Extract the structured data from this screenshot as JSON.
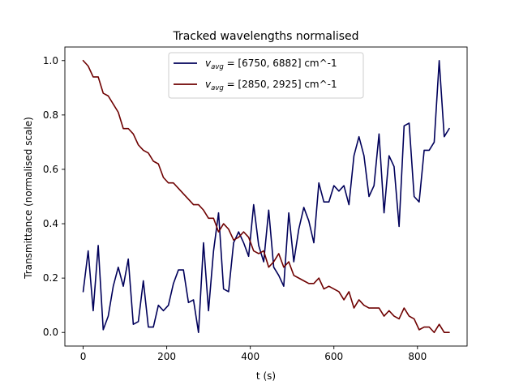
{
  "chart_data": {
    "type": "line",
    "title": "Tracked wavelengths normalised",
    "xlabel": "t (s)",
    "ylabel": "Transmittance (normalised scale)",
    "xlim": [
      -43.75,
      918.75
    ],
    "ylim": [
      -0.05,
      1.05
    ],
    "xticks": [
      0,
      200,
      400,
      600,
      800
    ],
    "yticks": [
      0.0,
      0.2,
      0.4,
      0.6,
      0.8,
      1.0
    ],
    "xtick_labels": [
      "0",
      "200",
      "400",
      "600",
      "800"
    ],
    "ytick_labels": [
      "0.0",
      "0.2",
      "0.4",
      "0.6",
      "0.8",
      "1.0"
    ],
    "grid": false,
    "legend_position": "top-center",
    "series": [
      {
        "name": "v_avg = [6750, 6882] cm^-1",
        "legend_main": "v",
        "legend_sub": "avg",
        "legend_rest": " = [6750, 6882] cm^-1",
        "color": "#00005a",
        "x": [
          0,
          12,
          24,
          36,
          48,
          60,
          72,
          84,
          96,
          108,
          120,
          132,
          144,
          156,
          168,
          180,
          192,
          204,
          216,
          228,
          240,
          252,
          264,
          276,
          288,
          300,
          312,
          324,
          336,
          348,
          360,
          372,
          384,
          396,
          408,
          420,
          432,
          444,
          456,
          468,
          480,
          492,
          504,
          516,
          528,
          540,
          552,
          564,
          576,
          588,
          600,
          612,
          624,
          636,
          648,
          660,
          672,
          684,
          696,
          708,
          720,
          732,
          744,
          756,
          768,
          780,
          792,
          804,
          816,
          828,
          840,
          852,
          864,
          876
        ],
        "y": [
          0.15,
          0.3,
          0.08,
          0.32,
          0.01,
          0.06,
          0.17,
          0.24,
          0.17,
          0.27,
          0.03,
          0.04,
          0.19,
          0.02,
          0.02,
          0.1,
          0.08,
          0.1,
          0.18,
          0.23,
          0.23,
          0.11,
          0.12,
          0.0,
          0.33,
          0.08,
          0.3,
          0.44,
          0.16,
          0.15,
          0.33,
          0.37,
          0.33,
          0.28,
          0.47,
          0.32,
          0.26,
          0.45,
          0.24,
          0.21,
          0.17,
          0.44,
          0.26,
          0.38,
          0.46,
          0.41,
          0.33,
          0.55,
          0.48,
          0.48,
          0.54,
          0.52,
          0.54,
          0.47,
          0.65,
          0.72,
          0.65,
          0.5,
          0.54,
          0.73,
          0.44,
          0.65,
          0.61,
          0.39,
          0.76,
          0.77,
          0.5,
          0.48,
          0.67,
          0.67,
          0.7,
          1.0,
          0.72,
          0.75
        ]
      },
      {
        "name": "v_avg = [2850, 2925] cm^-1",
        "legend_main": "v",
        "legend_sub": "avg",
        "legend_rest": " = [2850, 2925] cm^-1",
        "color": "#6e0000",
        "x": [
          0,
          12,
          24,
          36,
          48,
          60,
          72,
          84,
          96,
          108,
          120,
          132,
          144,
          156,
          168,
          180,
          192,
          204,
          216,
          228,
          240,
          252,
          264,
          276,
          288,
          300,
          312,
          324,
          336,
          348,
          360,
          372,
          384,
          396,
          408,
          420,
          432,
          444,
          456,
          468,
          480,
          492,
          504,
          516,
          528,
          540,
          552,
          564,
          576,
          588,
          600,
          612,
          624,
          636,
          648,
          660,
          672,
          684,
          696,
          708,
          720,
          732,
          744,
          756,
          768,
          780,
          792,
          804,
          816,
          828,
          840,
          852,
          864,
          876
        ],
        "y": [
          1.0,
          0.98,
          0.94,
          0.94,
          0.88,
          0.87,
          0.84,
          0.81,
          0.75,
          0.75,
          0.73,
          0.69,
          0.67,
          0.66,
          0.63,
          0.62,
          0.57,
          0.55,
          0.55,
          0.53,
          0.51,
          0.49,
          0.47,
          0.47,
          0.45,
          0.42,
          0.42,
          0.37,
          0.4,
          0.38,
          0.34,
          0.35,
          0.37,
          0.35,
          0.3,
          0.29,
          0.3,
          0.24,
          0.26,
          0.29,
          0.24,
          0.26,
          0.21,
          0.2,
          0.19,
          0.18,
          0.18,
          0.2,
          0.16,
          0.17,
          0.16,
          0.15,
          0.12,
          0.15,
          0.09,
          0.12,
          0.1,
          0.09,
          0.09,
          0.09,
          0.06,
          0.08,
          0.06,
          0.05,
          0.09,
          0.06,
          0.05,
          0.01,
          0.02,
          0.02,
          0.0,
          0.03,
          0.0,
          0.0
        ]
      }
    ]
  }
}
